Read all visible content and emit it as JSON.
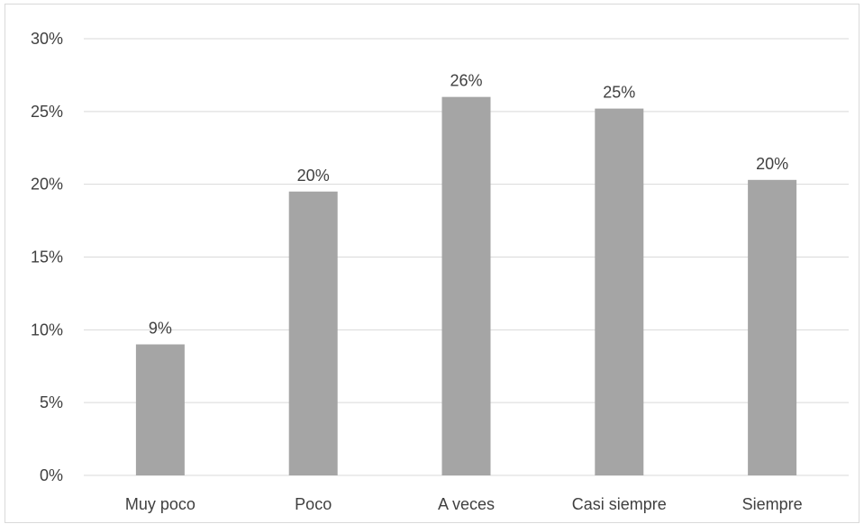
{
  "chart_data": {
    "type": "bar",
    "title": "",
    "xlabel": "",
    "ylabel": "",
    "categories": [
      "Muy poco",
      "Poco",
      "A veces",
      "Casi siempre",
      "Siempre"
    ],
    "values": [
      9,
      19.5,
      26,
      25.2,
      20.3
    ],
    "data_labels": [
      "9%",
      "20%",
      "26%",
      "25%",
      "20%"
    ],
    "ylim": [
      0,
      30
    ],
    "yticks": [
      0,
      5,
      10,
      15,
      20,
      25,
      30
    ],
    "ytick_labels": [
      "0%",
      "5%",
      "10%",
      "15%",
      "20%",
      "25%",
      "30%"
    ],
    "grid": true,
    "legend": "none",
    "colors": {
      "bar": "#a5a5a5",
      "grid": "#d9d9d9",
      "text": "#404040"
    }
  }
}
